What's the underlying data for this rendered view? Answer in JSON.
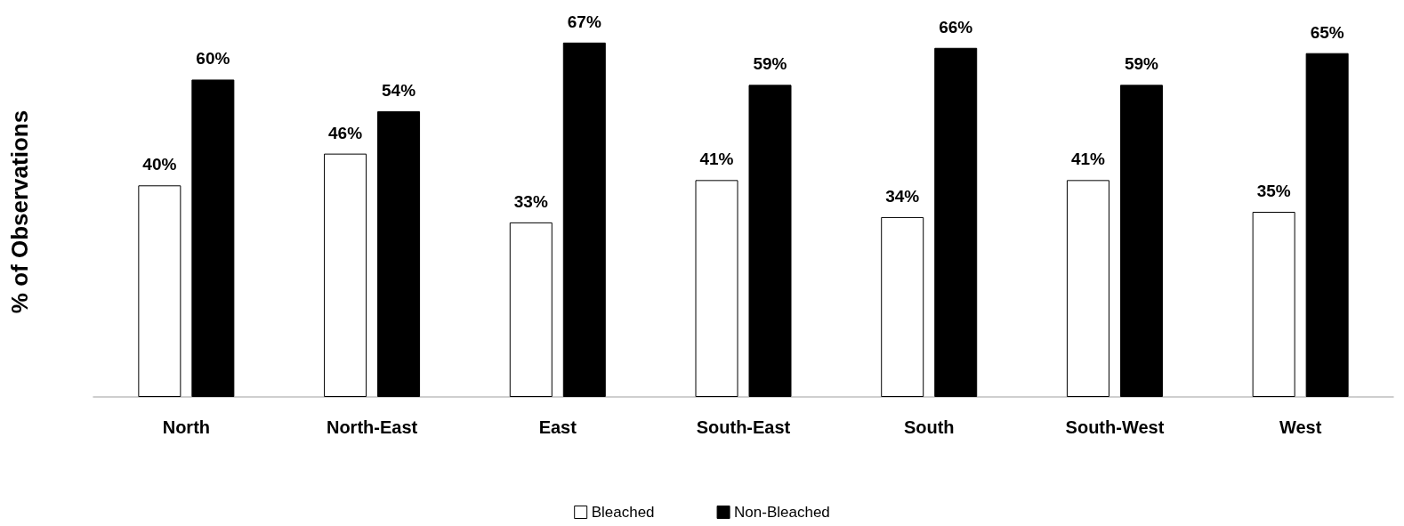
{
  "chart_data": {
    "type": "bar",
    "ylabel": "% of Observations",
    "categories": [
      "North",
      "North-East",
      "East",
      "South-East",
      "South",
      "South-West",
      "West"
    ],
    "series": [
      {
        "name": "Bleached",
        "color": "#ffffff",
        "values": [
          40,
          46,
          33,
          41,
          34,
          41,
          35
        ],
        "value_labels": [
          "40%",
          "46%",
          "33%",
          "41%",
          "34%",
          "41%",
          "35%"
        ]
      },
      {
        "name": "Non-Bleached",
        "color": "#000000",
        "values": [
          60,
          54,
          67,
          59,
          66,
          59,
          65
        ],
        "value_labels": [
          "60%",
          "54%",
          "67%",
          "59%",
          "66%",
          "59%",
          "65%"
        ]
      }
    ],
    "legend": "bottom",
    "grid": false,
    "tick_labels": "x"
  }
}
